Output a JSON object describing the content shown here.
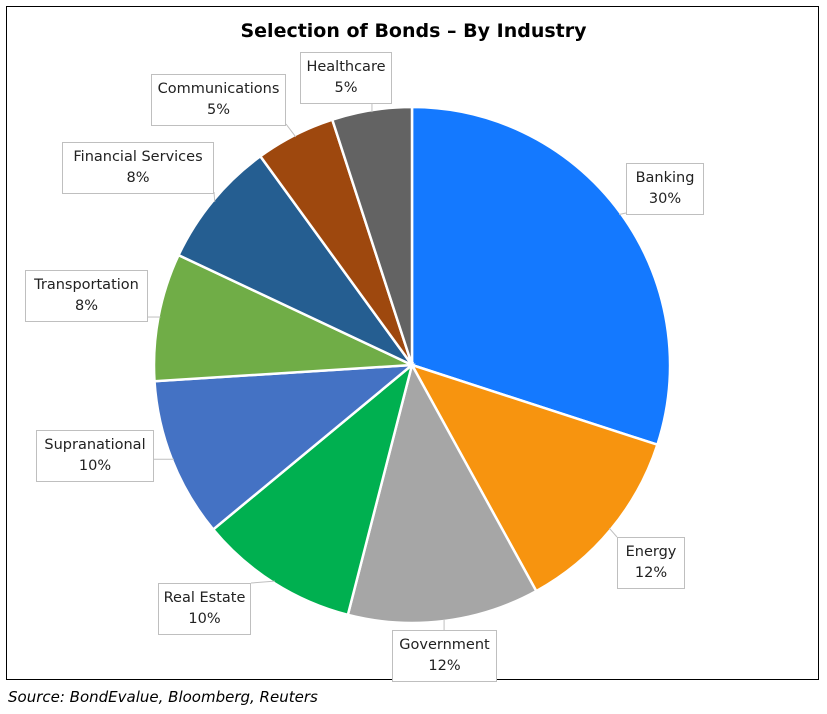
{
  "chart_data": {
    "type": "pie",
    "title": "Selection of Bonds – By Industry",
    "slices": [
      {
        "label": "Banking",
        "value": 30,
        "display": "30%",
        "color": "#1479FF"
      },
      {
        "label": "Energy",
        "value": 12,
        "display": "12%",
        "color": "#F7940F"
      },
      {
        "label": "Government",
        "value": 12,
        "display": "12%",
        "color": "#A6A6A6"
      },
      {
        "label": "Real Estate",
        "value": 10,
        "display": "10%",
        "color": "#00B050"
      },
      {
        "label": "Supranational",
        "value": 10,
        "display": "10%",
        "color": "#4472C4"
      },
      {
        "label": "Transportation",
        "value": 8,
        "display": "8%",
        "color": "#70AD47"
      },
      {
        "label": "Financial Services",
        "value": 8,
        "display": "8%",
        "color": "#255E91"
      },
      {
        "label": "Communications",
        "value": 5,
        "display": "5%",
        "color": "#9E480E"
      },
      {
        "label": "Healthcare",
        "value": 5,
        "display": "5%",
        "color": "#636363"
      }
    ],
    "start_angle": "12 o'clock, clockwise",
    "legend": "none (data callouts)"
  },
  "source": "Source: BondEvalue, Bloomberg, Reuters"
}
